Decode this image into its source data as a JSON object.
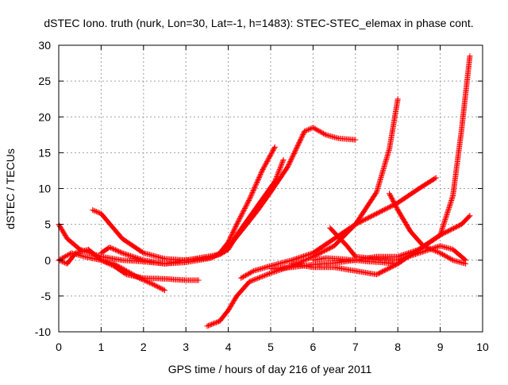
{
  "chart_data": {
    "type": "scatter",
    "title": "dSTEC Iono. truth (nurk, Lon=30, Lat=-1, h=1483): STEC-STEC_elemax in phase cont.",
    "xlabel": "GPS time / hours of day 216 of year 2011",
    "ylabel": "dSTEC  / TECUs",
    "xlim": [
      0,
      10
    ],
    "ylim": [
      -10,
      30
    ],
    "xticks": [
      "0",
      "1",
      "2",
      "3",
      "4",
      "5",
      "6",
      "7",
      "8",
      "9",
      "10"
    ],
    "yticks": [
      "-10",
      "-5",
      "0",
      "5",
      "10",
      "15",
      "20",
      "25",
      "30"
    ],
    "grid": true,
    "marker": "+",
    "color": "#ff0000",
    "series": [
      {
        "x": [
          0.0,
          0.2,
          0.5,
          1.0,
          1.5,
          2.0,
          2.5,
          3.0,
          3.3,
          3.6,
          3.8,
          4.0,
          4.2,
          4.5,
          4.8,
          5.1
        ],
        "y": [
          5.0,
          3.0,
          1.5,
          0.5,
          0.0,
          -0.2,
          -0.5,
          -0.3,
          0.0,
          0.3,
          1.0,
          2.5,
          5.0,
          8.5,
          12.5,
          15.8
        ]
      },
      {
        "x": [
          0.8,
          1.0,
          1.5,
          2.0,
          2.5,
          3.0,
          3.5,
          3.8,
          4.0,
          4.3,
          4.7,
          5.0,
          5.4,
          5.6,
          5.8,
          6.0,
          6.3,
          6.6,
          7.0
        ],
        "y": [
          7.0,
          6.5,
          3.0,
          1.0,
          0.2,
          0.0,
          0.3,
          0.8,
          1.8,
          4.0,
          7.0,
          9.5,
          13.0,
          15.5,
          18.0,
          18.5,
          17.5,
          17.0,
          16.8
        ]
      },
      {
        "x": [
          0.0,
          0.3,
          0.6,
          1.0,
          1.3,
          1.6,
          2.0,
          2.5,
          3.0,
          3.3
        ],
        "y": [
          0.0,
          1.0,
          0.5,
          0.0,
          -0.8,
          -2.0,
          -2.5,
          -2.6,
          -2.8,
          -2.8
        ]
      },
      {
        "x": [
          0.0,
          0.2,
          0.4,
          0.7,
          1.0,
          1.3,
          1.6,
          1.9,
          2.2,
          2.5
        ],
        "y": [
          0.0,
          -0.5,
          1.0,
          1.5,
          0.0,
          -0.5,
          -1.5,
          -2.5,
          -3.3,
          -4.2
        ]
      },
      {
        "x": [
          1.0,
          1.2,
          1.5,
          2.0,
          2.5,
          3.0,
          3.5,
          3.8,
          4.0,
          4.2,
          4.5,
          4.8,
          5.1,
          5.3
        ],
        "y": [
          1.0,
          1.8,
          1.0,
          0.0,
          -0.5,
          0.0,
          0.5,
          0.8,
          1.5,
          3.5,
          6.0,
          8.5,
          11.0,
          14.0
        ]
      },
      {
        "x": [
          3.5,
          3.8,
          4.0,
          4.2,
          4.5,
          5.0,
          5.5,
          6.0,
          6.5,
          7.0,
          7.5,
          7.8,
          8.0
        ],
        "y": [
          -9.2,
          -8.5,
          -7.0,
          -5.0,
          -3.0,
          -1.8,
          -0.8,
          0.5,
          2.0,
          5.0,
          9.5,
          15.5,
          22.5
        ]
      },
      {
        "x": [
          4.3,
          4.6,
          5.0,
          5.5,
          6.0,
          6.5,
          7.0,
          7.5,
          8.0,
          8.5,
          8.9
        ],
        "y": [
          -2.5,
          -1.5,
          -0.8,
          0.0,
          1.0,
          3.0,
          5.0,
          6.5,
          8.0,
          10.0,
          11.5
        ]
      },
      {
        "x": [
          5.0,
          5.5,
          6.0,
          6.5,
          7.0,
          7.5,
          8.0,
          8.5,
          9.0,
          9.3,
          9.5,
          9.7
        ],
        "y": [
          -1.2,
          -1.0,
          -0.6,
          -0.4,
          0.0,
          0.5,
          0.5,
          1.5,
          3.5,
          9.0,
          18.0,
          28.5
        ]
      },
      {
        "x": [
          5.5,
          6.0,
          6.5,
          7.0,
          7.5,
          8.0,
          8.5,
          9.0,
          9.5,
          9.7
        ],
        "y": [
          -0.5,
          -1.0,
          -1.0,
          -1.5,
          -2.0,
          -0.5,
          1.5,
          3.5,
          5.0,
          6.2
        ]
      },
      {
        "x": [
          6.4,
          6.8,
          7.0,
          7.3,
          7.6,
          8.0,
          8.5,
          9.0,
          9.3,
          9.6
        ],
        "y": [
          4.5,
          2.0,
          0.5,
          0.3,
          0.0,
          0.0,
          1.0,
          2.0,
          1.5,
          0.0
        ]
      },
      {
        "x": [
          7.8,
          8.0,
          8.3,
          8.6,
          9.0,
          9.3,
          9.6
        ],
        "y": [
          9.3,
          7.0,
          4.0,
          2.0,
          1.0,
          0.0,
          -0.5
        ]
      },
      {
        "x": [
          6.0,
          6.3,
          6.6,
          7.0,
          7.3,
          7.6,
          7.9
        ],
        "y": [
          0.0,
          0.3,
          0.2,
          0.0,
          -0.2,
          -0.3,
          -0.5
        ]
      }
    ]
  }
}
